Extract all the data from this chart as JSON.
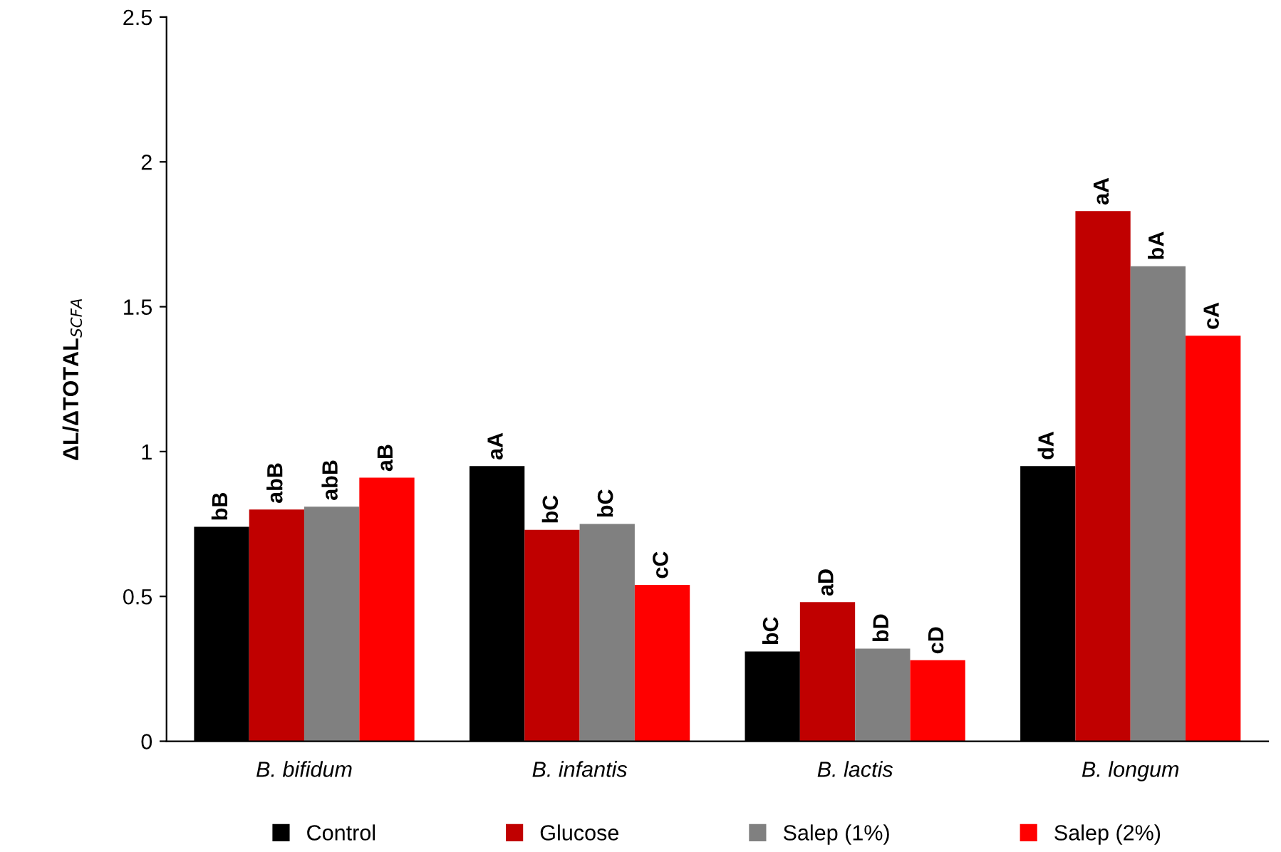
{
  "chart_data": {
    "type": "bar",
    "ylabel": "ΔL/ΔTOTAL$_{SCFA}$",
    "categories": [
      "B. bifidum",
      "B. infantis",
      "B. lactis",
      "B. longum"
    ],
    "series": [
      {
        "name": "Control",
        "color": "#000000",
        "values": [
          0.74,
          0.95,
          0.31,
          0.95
        ],
        "value_labels": [
          "bB",
          "aA",
          "bC",
          "dA"
        ]
      },
      {
        "name": "Glucose",
        "color": "#c00000",
        "values": [
          0.8,
          0.73,
          0.48,
          1.83
        ],
        "value_labels": [
          "abB",
          "bC",
          "aD",
          "aA"
        ]
      },
      {
        "name": "Salep (1%)",
        "color": "#808080",
        "values": [
          0.81,
          0.75,
          0.32,
          1.64
        ],
        "value_labels": [
          "abB",
          "bC",
          "bD",
          "bA"
        ]
      },
      {
        "name": "Salep (2%)",
        "color": "#ff0000",
        "values": [
          0.91,
          0.54,
          0.28,
          1.4
        ],
        "value_labels": [
          "aB",
          "cC",
          "cD",
          "cA"
        ]
      }
    ],
    "ylim": [
      0,
      2.5
    ],
    "yticks": [
      0,
      0.5,
      1,
      1.5,
      2,
      2.5
    ],
    "grid": false,
    "legend": "bottom"
  }
}
